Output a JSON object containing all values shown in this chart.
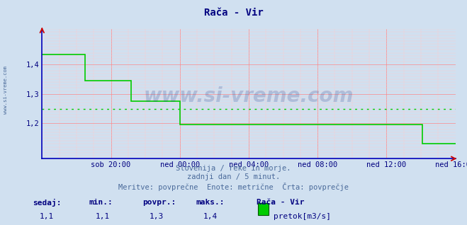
{
  "title": "Rača - Vir",
  "title_color": "#000080",
  "title_fontsize": 10,
  "bg_color": "#d0e0f0",
  "plot_bg_color": "#d0e0f0",
  "grid_color_major": "#ff8888",
  "grid_color_minor": "#ffcccc",
  "line_color": "#00cc00",
  "line_width": 1.2,
  "avg_line_color": "#00cc00",
  "avg_value": 1.25,
  "xlim": [
    0,
    288
  ],
  "ylim": [
    1.08,
    1.52
  ],
  "yticks": [
    1.2,
    1.3,
    1.4
  ],
  "tick_label_fontsize": 7.5,
  "xtick_labels": [
    "sob 20:00",
    "ned 00:00",
    "ned 04:00",
    "ned 08:00",
    "ned 12:00",
    "ned 16:00"
  ],
  "xtick_positions": [
    48,
    96,
    144,
    192,
    240,
    288
  ],
  "watermark_text": "www.si-vreme.com",
  "subtitle1": "Slovenija / reke in morje.",
  "subtitle2": "zadnji dan / 5 minut.",
  "subtitle3": "Meritve: povprečne  Enote: metrične  Črta: povprečje",
  "footer_label1": "sedaj:",
  "footer_label2": "min.:",
  "footer_label3": "povpr.:",
  "footer_label4": "maks.:",
  "footer_val1": "1,1",
  "footer_val2": "1,1",
  "footer_val3": "1,3",
  "footer_val4": "1,4",
  "footer_series": "Rača - Vir",
  "footer_legend": "pretok[m3/s]",
  "left_label": "www.si-vreme.com",
  "data_y_segments": [
    [
      0,
      1.435
    ],
    [
      30,
      1.435
    ],
    [
      30,
      1.345
    ],
    [
      62,
      1.345
    ],
    [
      62,
      1.275
    ],
    [
      96,
      1.275
    ],
    [
      96,
      1.195
    ],
    [
      144,
      1.195
    ],
    [
      144,
      1.195
    ],
    [
      265,
      1.195
    ],
    [
      265,
      1.13
    ],
    [
      288,
      1.13
    ]
  ]
}
